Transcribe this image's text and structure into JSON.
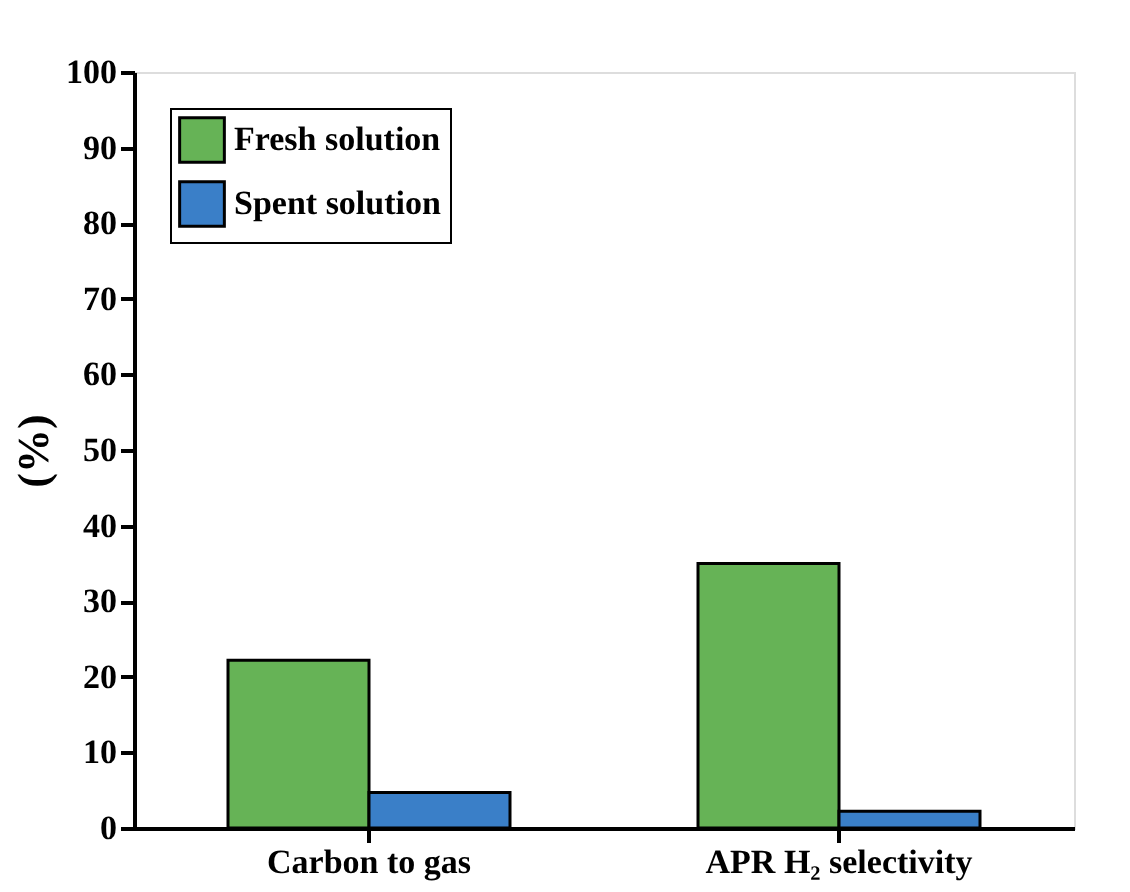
{
  "chart_data": {
    "type": "bar",
    "ylabel": "(%)",
    "categories": [
      "Carbon to gas",
      "APR H₂ selectivity"
    ],
    "series": [
      {
        "name": "Fresh solution",
        "color": "#66b356",
        "values": [
          22.2,
          35
        ]
      },
      {
        "name": "Spent solution",
        "color": "#3a7fc8",
        "values": [
          4.7,
          2.2
        ]
      }
    ],
    "ylim": [
      0,
      100
    ],
    "yticks": [
      0,
      10,
      20,
      30,
      40,
      50,
      60,
      70,
      80,
      90,
      100
    ],
    "grid": false,
    "legend": "top left"
  }
}
